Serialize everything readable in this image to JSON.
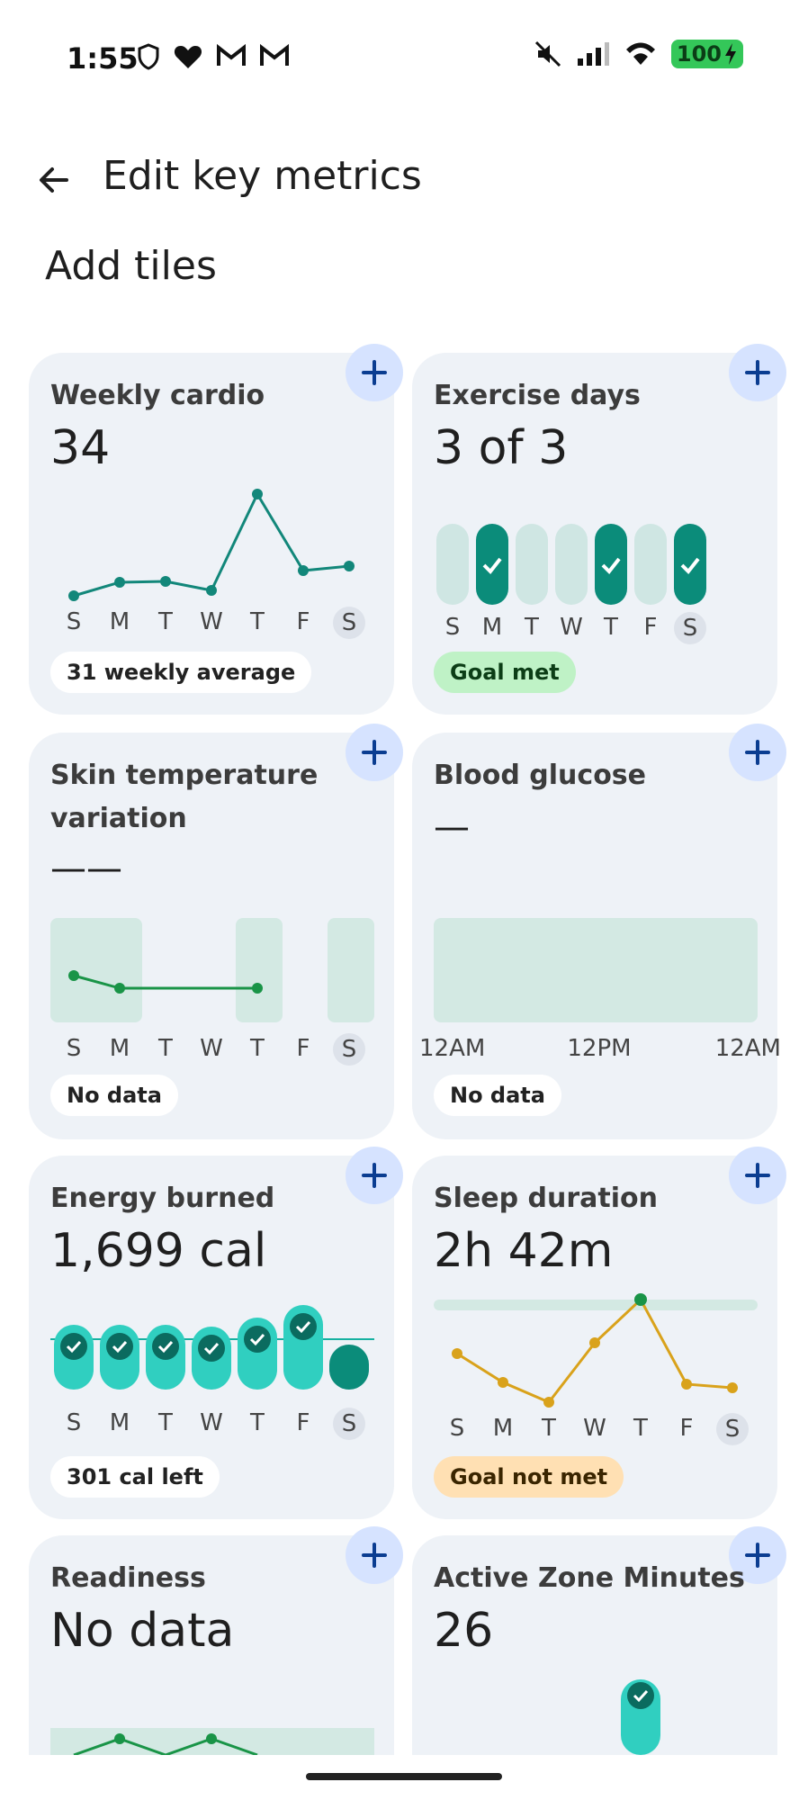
{
  "status": {
    "time": "1:55",
    "battery": "100",
    "left_icons": [
      "shield-icon",
      "heart-icon",
      "gmail-icon",
      "gmail-icon"
    ],
    "right_icons": [
      "mute-icon",
      "signal-icon",
      "wifi-icon",
      "battery-icon"
    ]
  },
  "appbar": {
    "title": "Edit key metrics",
    "back_icon": "arrow-left-icon"
  },
  "section": {
    "title": "Add tiles"
  },
  "days": [
    "S",
    "M",
    "T",
    "W",
    "T",
    "F",
    "S"
  ],
  "colors": {
    "card": "#eef2f7",
    "accent_teal": "#0b8c7a",
    "light_teal": "#cfe6e3",
    "plus_bg": "#d6e3ff",
    "sleep_line": "#d9a21b",
    "goal_green": "#bff2c6",
    "goal_orange": "#ffe0b3"
  },
  "cards": {
    "weekly_cardio": {
      "title": "Weekly cardio",
      "value": "34",
      "pill": "31 weekly average",
      "points": [
        5,
        9,
        10,
        6,
        70,
        16,
        19
      ]
    },
    "exercise_days": {
      "title": "Exercise days",
      "value": "3 of 3",
      "pill": "Goal met",
      "checked": [
        false,
        true,
        false,
        false,
        true,
        false,
        true
      ]
    },
    "skin_temp": {
      "title": "Skin temperature variation",
      "value": "——",
      "pill": "No data"
    },
    "blood_glucose": {
      "title": "Blood glucose",
      "value": "—",
      "pill": "No data",
      "time_labels": [
        "12AM",
        "12PM",
        "12AM"
      ]
    },
    "energy_burned": {
      "title": "Energy burned",
      "value": "1,699 cal",
      "pill": "301 cal left"
    },
    "sleep_duration": {
      "title": "Sleep duration",
      "value": "2h 42m",
      "pill": "Goal not met"
    },
    "readiness": {
      "title": "Readiness",
      "value": "No data"
    },
    "active_zone": {
      "title": "Active Zone Minutes",
      "value": "26"
    }
  }
}
